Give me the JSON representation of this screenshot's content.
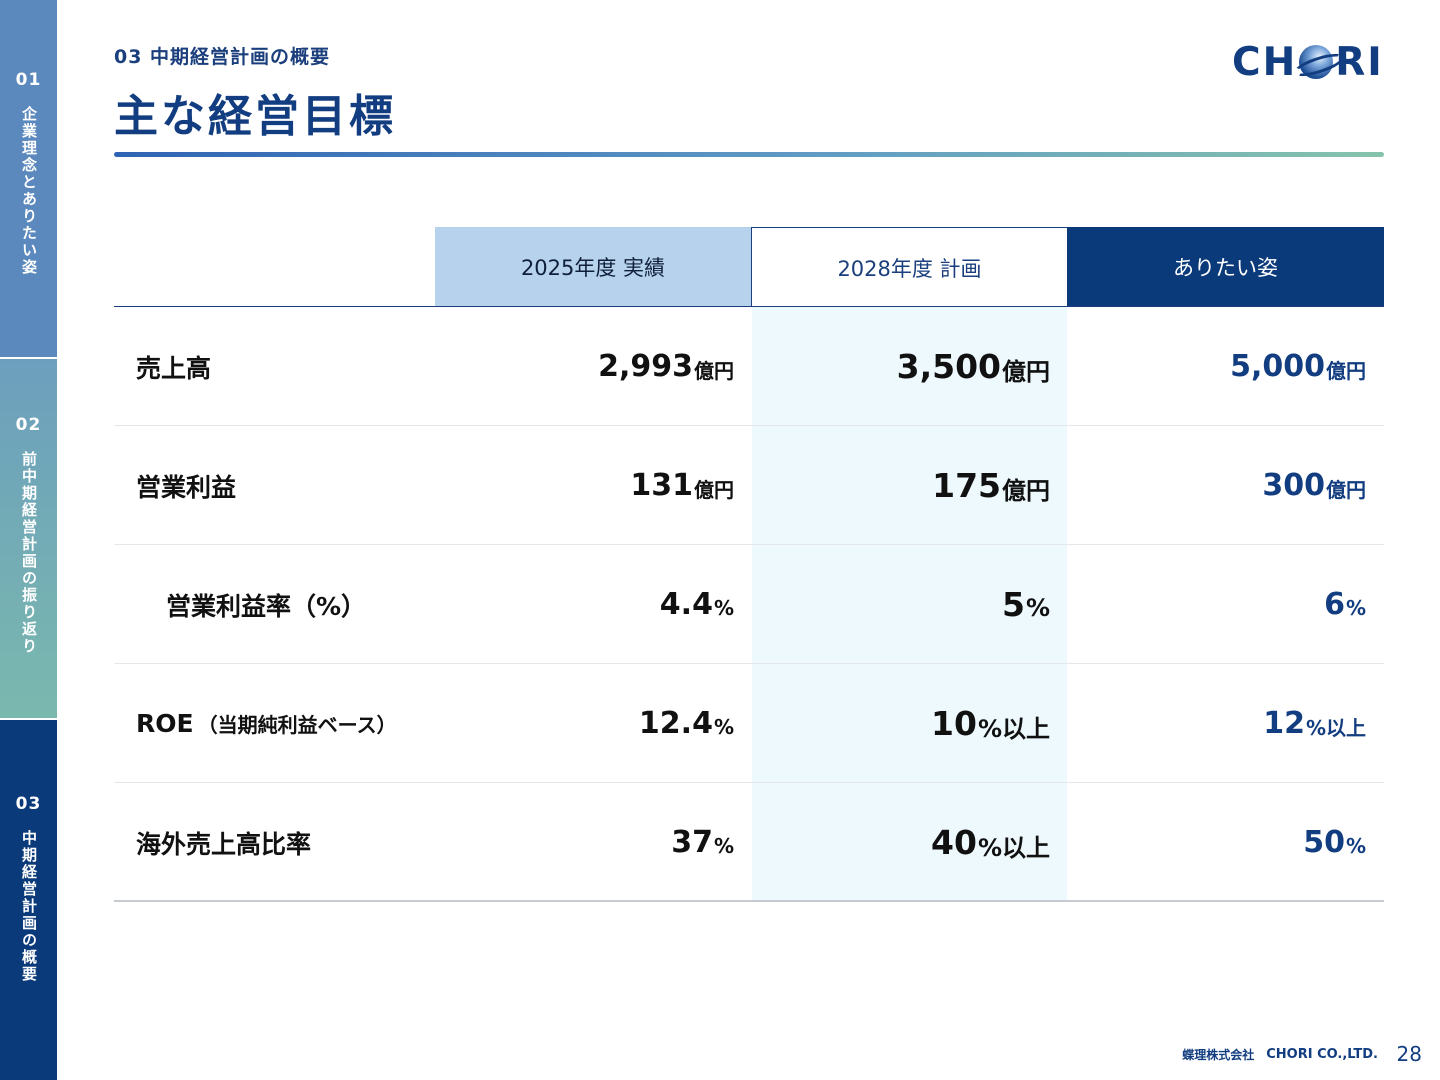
{
  "sidebar": {
    "sections": [
      {
        "num": "01",
        "label": "企業理念とありたい姿"
      },
      {
        "num": "02",
        "label": "前中期経営計画の振り返り"
      },
      {
        "num": "03",
        "label": "中期経営計画の概要"
      }
    ],
    "active_index": 2
  },
  "header": {
    "subtitle": "03 中期経営計画の概要",
    "title": "主な経営目標",
    "logo": {
      "before": "CH",
      "after": "RI"
    }
  },
  "table": {
    "columns": [
      "2025年度 実績",
      "2028年度 計画",
      "ありたい姿"
    ],
    "rows": [
      {
        "label": "売上高",
        "label_small": "",
        "indent": false,
        "values": [
          {
            "num": "2,993",
            "unit": "億円"
          },
          {
            "num": "3,500",
            "unit": "億円"
          },
          {
            "num": "5,000",
            "unit": "億円"
          }
        ]
      },
      {
        "label": "営業利益",
        "label_small": "",
        "indent": false,
        "values": [
          {
            "num": "131",
            "unit": "億円"
          },
          {
            "num": "175",
            "unit": "億円"
          },
          {
            "num": "300",
            "unit": "億円"
          }
        ]
      },
      {
        "label": "営業利益率（%）",
        "label_small": "",
        "indent": true,
        "values": [
          {
            "num": "4.4",
            "unit": "%"
          },
          {
            "num": "5",
            "unit": "%"
          },
          {
            "num": "6",
            "unit": "%"
          }
        ]
      },
      {
        "label": "ROE",
        "label_small": "（当期純利益ベース）",
        "indent": false,
        "values": [
          {
            "num": "12.4",
            "unit": "%"
          },
          {
            "num": "10",
            "unit": "%以上"
          },
          {
            "num": "12",
            "unit": "%以上"
          }
        ]
      },
      {
        "label": "海外売上高比率",
        "label_small": "",
        "indent": false,
        "values": [
          {
            "num": "37",
            "unit": "%"
          },
          {
            "num": "40",
            "unit": "%以上"
          },
          {
            "num": "50",
            "unit": "%"
          }
        ]
      }
    ]
  },
  "footer": {
    "company_jp": "蝶理株式会社",
    "company_brand": "CHORI",
    "company_suffix": "CO.,LTD.",
    "page_number": "28"
  },
  "colors": {
    "navy": "#0b3a7a",
    "accent_blue": "#123d80",
    "header_light": "#b7d2ec",
    "plan_column_bg": "#eef9fd"
  }
}
